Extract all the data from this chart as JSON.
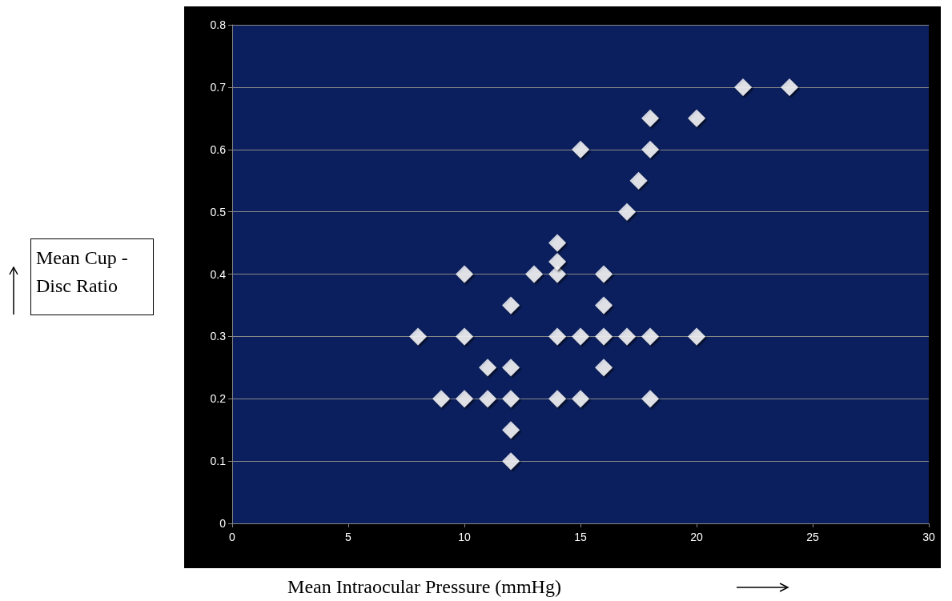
{
  "chart_data": {
    "type": "scatter",
    "xlabel": "Mean Intraocular Pressure (mmHg)",
    "ylabel": "Mean Cup -Disc Ratio",
    "x": [
      8,
      9,
      10,
      10,
      10,
      11,
      11,
      12,
      12,
      12,
      12,
      12,
      13,
      14,
      14,
      14,
      14,
      14,
      15,
      15,
      15,
      16,
      16,
      16,
      16,
      17,
      17,
      17.5,
      18,
      18,
      18,
      18,
      20,
      20,
      22,
      24
    ],
    "values": [
      0.3,
      0.2,
      0.2,
      0.3,
      0.4,
      0.2,
      0.25,
      0.1,
      0.15,
      0.2,
      0.25,
      0.35,
      0.4,
      0.2,
      0.3,
      0.4,
      0.42,
      0.45,
      0.2,
      0.3,
      0.6,
      0.25,
      0.3,
      0.35,
      0.4,
      0.3,
      0.5,
      0.55,
      0.2,
      0.3,
      0.6,
      0.65,
      0.3,
      0.65,
      0.7,
      0.7
    ],
    "color": "#ffffff",
    "marker": "diamond",
    "xlim": [
      0,
      30
    ],
    "xticks": [
      0,
      5,
      10,
      15,
      20,
      25,
      30
    ],
    "ylim": [
      0,
      0.8
    ],
    "yticks": [
      0,
      0.1,
      0.2,
      0.3,
      0.4,
      0.5,
      0.6,
      0.7,
      0.8
    ],
    "grid": "y"
  }
}
